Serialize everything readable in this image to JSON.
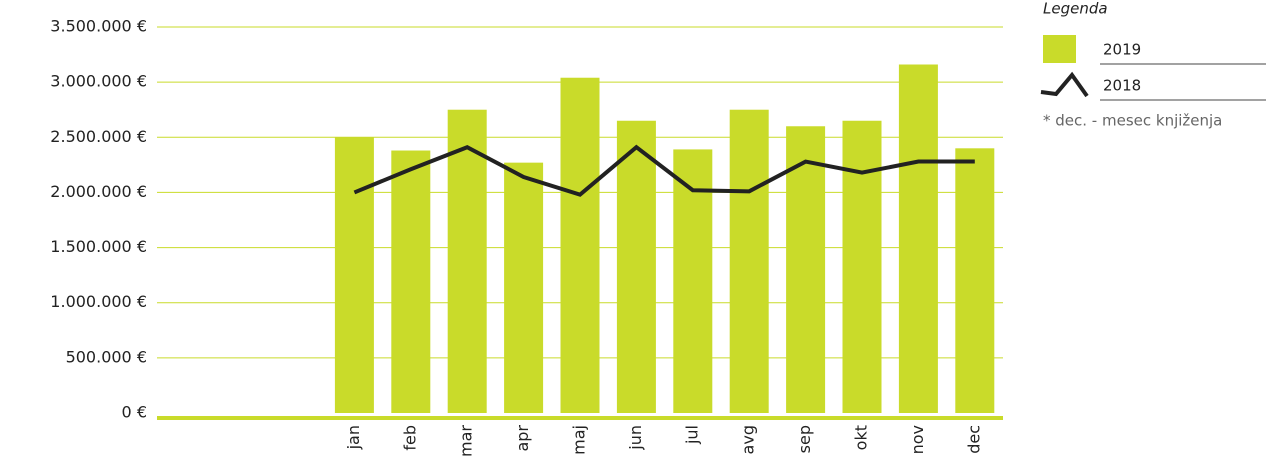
{
  "chart_data": {
    "type": "bar",
    "categories": [
      "jan",
      "feb",
      "mar",
      "apr",
      "maj",
      "jun",
      "jul",
      "avg",
      "sep",
      "okt",
      "nov",
      "dec"
    ],
    "series": [
      {
        "name": "2019",
        "type": "bar",
        "color": "#c9db2a",
        "values": [
          2500000,
          2380000,
          2750000,
          2270000,
          3040000,
          2650000,
          2390000,
          2750000,
          2600000,
          2650000,
          3160000,
          2400000
        ]
      },
      {
        "name": "2018",
        "type": "line",
        "color": "#222222",
        "values": [
          2000000,
          2210000,
          2410000,
          2140000,
          1980000,
          2410000,
          2020000,
          2010000,
          2280000,
          2180000,
          2280000,
          2280000
        ]
      }
    ],
    "ylim": [
      0,
      3500000
    ],
    "yticks": [
      {
        "value": 0,
        "label": "0 €"
      },
      {
        "value": 500000,
        "label": "500.000 €"
      },
      {
        "value": 1000000,
        "label": "1.000.000 €"
      },
      {
        "value": 1500000,
        "label": "1.500.000 €"
      },
      {
        "value": 2000000,
        "label": "2.000.000 €"
      },
      {
        "value": 2500000,
        "label": "2.500.000 €"
      },
      {
        "value": 3000000,
        "label": "3.000.000 €"
      },
      {
        "value": 3500000,
        "label": "3.500.000 €"
      }
    ],
    "grid": true,
    "legend_title": "Legenda",
    "note": "* dec. - mesec knjiženja"
  }
}
